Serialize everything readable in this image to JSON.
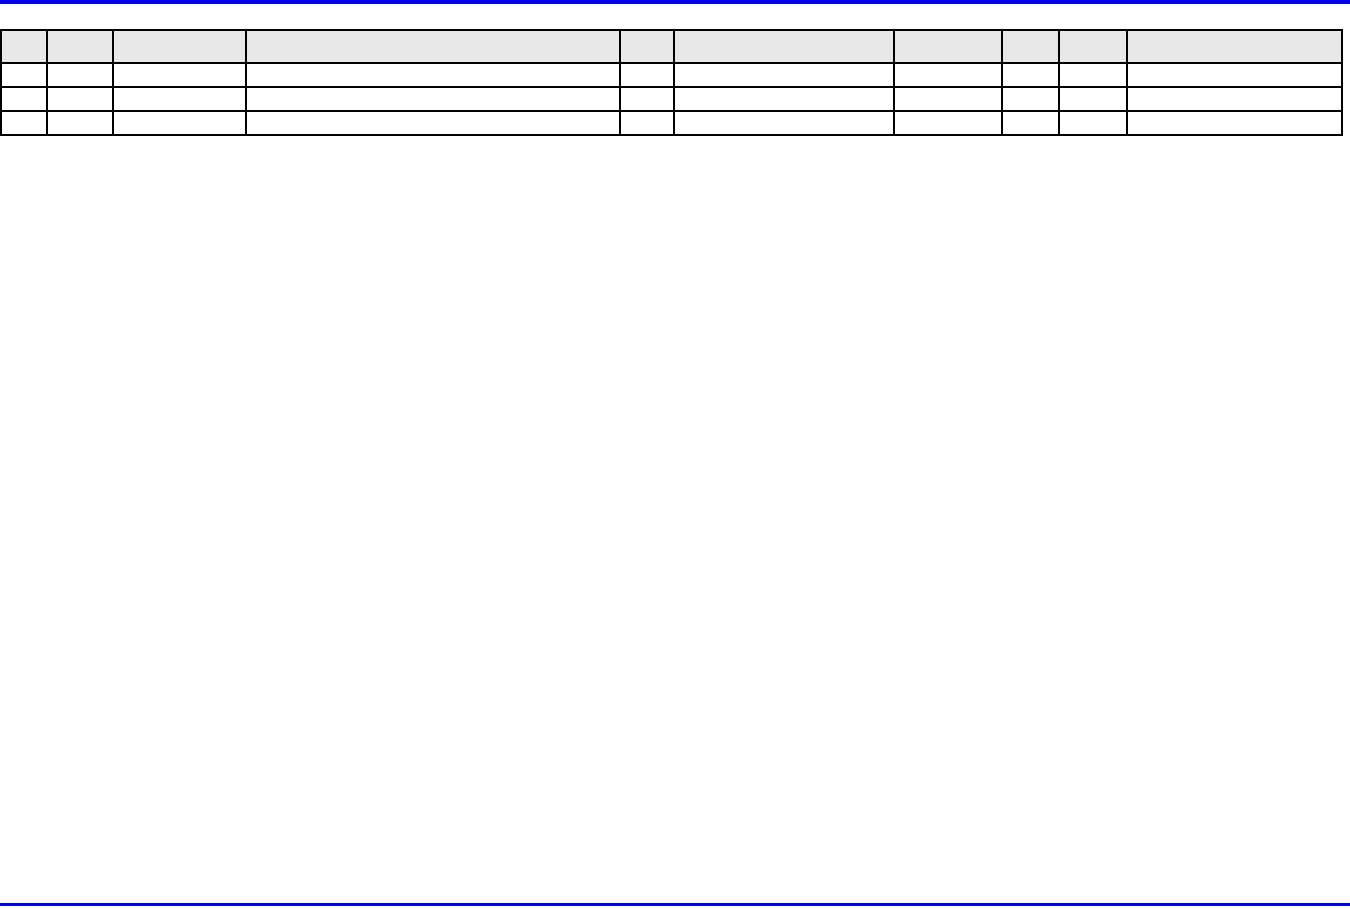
{
  "page": {
    "background": "#ffffff",
    "rule_color": "#0000ee"
  },
  "table": {
    "border_color": "#000000",
    "header_background": "#e8e8e8",
    "column_count": 10,
    "row_count": 3,
    "headers": [
      "",
      "",
      "",
      "",
      "",
      "",
      "",
      "",
      "",
      ""
    ],
    "rows": [
      [
        "",
        "",
        "",
        "",
        "",
        "",
        "",
        "",
        "",
        ""
      ],
      [
        "",
        "",
        "",
        "",
        "",
        "",
        "",
        "",
        "",
        ""
      ],
      [
        "",
        "",
        "",
        "",
        "",
        "",
        "",
        "",
        "",
        ""
      ]
    ]
  }
}
